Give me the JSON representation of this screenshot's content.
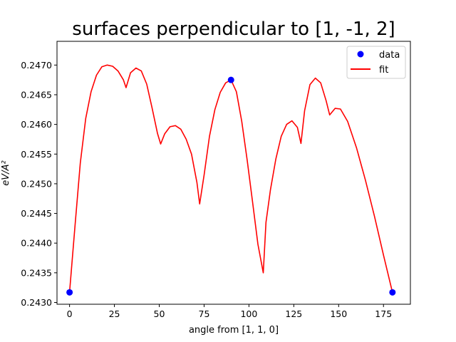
{
  "chart_data": {
    "type": "line",
    "title": "surfaces perpendicular to [1, -1, 2]",
    "xlabel": "angle from [1, 1, 0]",
    "ylabel": "eV/A²",
    "xlim": [
      -7,
      190
    ],
    "ylim": [
      0.24297,
      0.2474
    ],
    "xticks": [
      0,
      25,
      50,
      75,
      100,
      125,
      150,
      175
    ],
    "yticks": [
      "0.2430",
      "0.2435",
      "0.2440",
      "0.2445",
      "0.2450",
      "0.2455",
      "0.2460",
      "0.2465",
      "0.2470"
    ],
    "legend": {
      "position": "top-right",
      "entries": [
        "data",
        "fit"
      ]
    },
    "colors": {
      "data": "#0000ff",
      "fit": "#ff0000"
    },
    "grid": false,
    "series": [
      {
        "name": "data",
        "kind": "scatter",
        "x": [
          0,
          90,
          180
        ],
        "y": [
          0.24317,
          0.24675,
          0.24317
        ]
      },
      {
        "name": "fit",
        "kind": "line",
        "x": [
          0,
          3,
          6,
          9,
          12,
          15,
          18,
          21,
          24,
          27,
          30,
          31.5,
          34,
          37,
          40,
          43,
          46,
          49,
          50.8,
          53,
          56,
          59,
          62,
          65,
          68,
          71,
          72.5,
          75,
          78,
          81,
          84,
          87,
          90,
          93,
          96,
          99,
          102,
          105,
          108,
          109.5,
          112,
          115,
          118,
          121,
          124,
          127,
          129,
          131,
          134,
          137,
          140,
          143,
          145,
          148,
          151,
          155,
          160,
          165,
          170,
          175,
          180
        ],
        "y": [
          0.24317,
          0.24428,
          0.24535,
          0.2461,
          0.24655,
          0.24683,
          0.24697,
          0.247,
          0.24698,
          0.2469,
          0.24675,
          0.24662,
          0.24687,
          0.24695,
          0.2469,
          0.24668,
          0.24628,
          0.24585,
          0.24567,
          0.24584,
          0.24596,
          0.24598,
          0.24592,
          0.24575,
          0.2455,
          0.24502,
          0.24466,
          0.24515,
          0.2458,
          0.24625,
          0.24654,
          0.2467,
          0.24675,
          0.24655,
          0.24605,
          0.2454,
          0.2447,
          0.24398,
          0.2435,
          0.24435,
          0.2449,
          0.24542,
          0.2458,
          0.246,
          0.24606,
          0.24595,
          0.24568,
          0.24623,
          0.24667,
          0.24678,
          0.2467,
          0.2464,
          0.24616,
          0.24627,
          0.24626,
          0.24605,
          0.2456,
          0.24505,
          0.24445,
          0.2438,
          0.24317
        ]
      }
    ]
  }
}
